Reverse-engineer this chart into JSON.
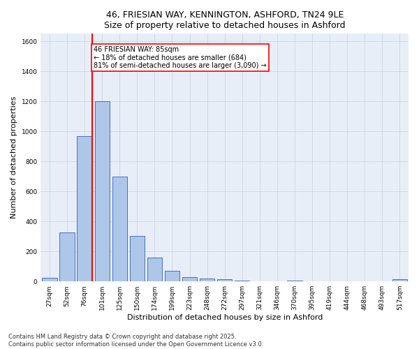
{
  "title_line1": "46, FRIESIAN WAY, KENNINGTON, ASHFORD, TN24 9LE",
  "title_line2": "Size of property relative to detached houses in Ashford",
  "xlabel": "Distribution of detached houses by size in Ashford",
  "ylabel": "Number of detached properties",
  "categories": [
    "27sqm",
    "52sqm",
    "76sqm",
    "101sqm",
    "125sqm",
    "150sqm",
    "174sqm",
    "199sqm",
    "223sqm",
    "248sqm",
    "272sqm",
    "297sqm",
    "321sqm",
    "346sqm",
    "370sqm",
    "395sqm",
    "419sqm",
    "444sqm",
    "468sqm",
    "493sqm",
    "517sqm"
  ],
  "values": [
    25,
    325,
    970,
    1200,
    700,
    305,
    160,
    70,
    30,
    20,
    15,
    5,
    0,
    0,
    5,
    0,
    0,
    0,
    0,
    0,
    15
  ],
  "bar_color": "#aec6e8",
  "bar_edge_color": "#4472c4",
  "vline_x_index": 2,
  "vline_color": "red",
  "vline_linewidth": 1.5,
  "annotation_text": "46 FRIESIAN WAY: 85sqm\n← 18% of detached houses are smaller (684)\n81% of semi-detached houses are larger (3,090) →",
  "annotation_box_color": "white",
  "annotation_box_edgecolor": "red",
  "annotation_fontsize": 7,
  "ylim": [
    0,
    1650
  ],
  "yticks": [
    0,
    200,
    400,
    600,
    800,
    1000,
    1200,
    1400,
    1600
  ],
  "grid_color": "#c8d0dc",
  "bg_color": "#e8eef8",
  "footer_text": "Contains HM Land Registry data © Crown copyright and database right 2025.\nContains public sector information licensed under the Open Government Licence v3.0.",
  "title_fontsize": 9,
  "axis_label_fontsize": 8,
  "tick_fontsize": 6.5,
  "footer_fontsize": 6
}
